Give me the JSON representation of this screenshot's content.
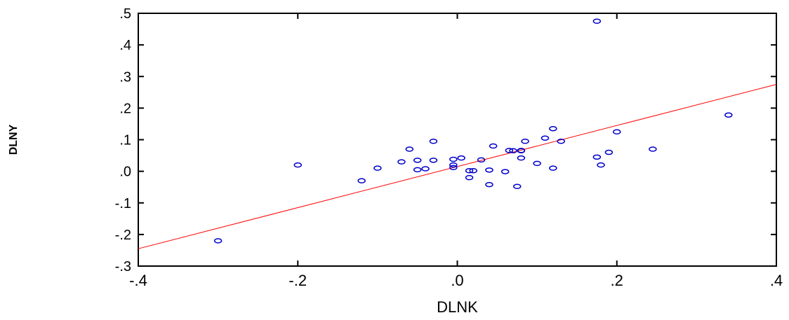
{
  "chart_data": {
    "type": "scatter",
    "title": "",
    "xlabel": "DLNK",
    "ylabel": "DLNY",
    "xlim": [
      -0.4,
      0.4
    ],
    "ylim": [
      -0.3,
      0.5
    ],
    "x_ticks": [
      {
        "value": -0.4,
        "label": "-.4"
      },
      {
        "value": -0.2,
        "label": "-.2"
      },
      {
        "value": 0.0,
        "label": ".0"
      },
      {
        "value": 0.2,
        "label": ".2"
      },
      {
        "value": 0.4,
        "label": ".4"
      }
    ],
    "y_ticks": [
      {
        "value": -0.3,
        "label": "-.3"
      },
      {
        "value": -0.2,
        "label": "-.2"
      },
      {
        "value": -0.1,
        "label": "-.1"
      },
      {
        "value": 0.0,
        "label": ".0"
      },
      {
        "value": 0.1,
        "label": ".1"
      },
      {
        "value": 0.2,
        "label": ".2"
      },
      {
        "value": 0.3,
        "label": ".3"
      },
      {
        "value": 0.4,
        "label": ".4"
      },
      {
        "value": 0.5,
        "label": ".5"
      }
    ],
    "grid": false,
    "marker": "open-circle",
    "marker_color": "#0000cc",
    "fit_line_color": "#ff0000",
    "axis_color": "#000000",
    "points": [
      {
        "x": -0.3,
        "y": -0.22
      },
      {
        "x": -0.2,
        "y": 0.02
      },
      {
        "x": -0.12,
        "y": -0.03
      },
      {
        "x": -0.1,
        "y": 0.01
      },
      {
        "x": -0.07,
        "y": 0.03
      },
      {
        "x": -0.06,
        "y": 0.07
      },
      {
        "x": -0.05,
        "y": 0.035
      },
      {
        "x": -0.05,
        "y": 0.005
      },
      {
        "x": -0.04,
        "y": 0.008
      },
      {
        "x": -0.03,
        "y": 0.095
      },
      {
        "x": -0.03,
        "y": 0.035
      },
      {
        "x": -0.005,
        "y": 0.038
      },
      {
        "x": -0.005,
        "y": 0.012
      },
      {
        "x": -0.005,
        "y": 0.02
      },
      {
        "x": 0.005,
        "y": 0.042
      },
      {
        "x": 0.015,
        "y": 0.002
      },
      {
        "x": 0.015,
        "y": -0.02
      },
      {
        "x": 0.02,
        "y": 0.002
      },
      {
        "x": 0.03,
        "y": 0.036
      },
      {
        "x": 0.04,
        "y": 0.004
      },
      {
        "x": 0.04,
        "y": -0.042
      },
      {
        "x": 0.045,
        "y": 0.08
      },
      {
        "x": 0.06,
        "y": -0.001
      },
      {
        "x": 0.065,
        "y": 0.066
      },
      {
        "x": 0.07,
        "y": 0.065
      },
      {
        "x": 0.075,
        "y": -0.048
      },
      {
        "x": 0.08,
        "y": 0.065
      },
      {
        "x": 0.08,
        "y": 0.042
      },
      {
        "x": 0.08,
        "y": 0.066
      },
      {
        "x": 0.085,
        "y": 0.095
      },
      {
        "x": 0.1,
        "y": 0.025
      },
      {
        "x": 0.11,
        "y": 0.105
      },
      {
        "x": 0.12,
        "y": 0.01
      },
      {
        "x": 0.12,
        "y": 0.135
      },
      {
        "x": 0.13,
        "y": 0.095
      },
      {
        "x": 0.175,
        "y": 0.475
      },
      {
        "x": 0.175,
        "y": 0.045
      },
      {
        "x": 0.18,
        "y": 0.02
      },
      {
        "x": 0.19,
        "y": 0.06
      },
      {
        "x": 0.2,
        "y": 0.125
      },
      {
        "x": 0.245,
        "y": 0.07
      },
      {
        "x": 0.34,
        "y": 0.178
      }
    ],
    "fit_line": [
      {
        "x": -0.4,
        "y": -0.245
      },
      {
        "x": 0.4,
        "y": 0.275
      }
    ]
  }
}
